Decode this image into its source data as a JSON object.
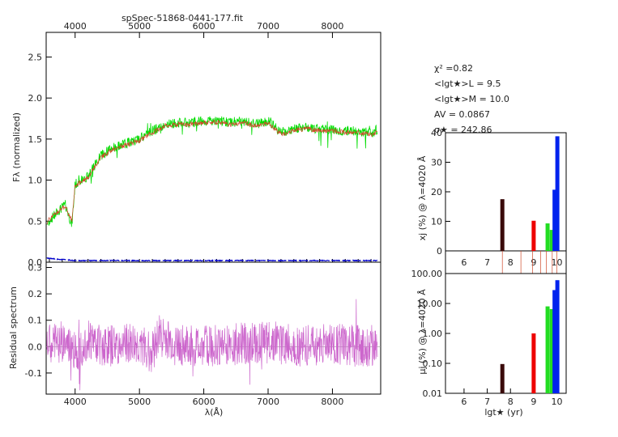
{
  "title": "spSpec-51868-0441-177.fit",
  "stats": {
    "chi2": "χ² =0.82",
    "lgt_l": "<lgt★>L = 9.5",
    "lgt_m": "<lgt★>M = 10.0",
    "av": "AV = 0.0867",
    "sigma": "σ★ = 242.86"
  },
  "spectrum_panel": {
    "ylabel": "Fλ (normalized)",
    "xlabel": "λ(Å)",
    "top_ticks": [
      "4000",
      "5000",
      "6000",
      "7000",
      "8000"
    ],
    "bottom_ticks": [
      "4000",
      "5000",
      "6000",
      "7000",
      "8000"
    ],
    "y_ticks": [
      "0.0",
      "0.5",
      "1.0",
      "1.5",
      "2.0",
      "2.5"
    ]
  },
  "residual_panel": {
    "ylabel": "Residual spectrum",
    "y_ticks": [
      "-0.1",
      "0.0",
      "0.1",
      "0.2",
      "0.3"
    ]
  },
  "xj_panel": {
    "ylabel": "xj (%) @ λ=4020 Å",
    "y_ticks": [
      "0",
      "10",
      "20",
      "30",
      "40"
    ],
    "x_ticks": [
      "6",
      "7",
      "8",
      "9",
      "10"
    ]
  },
  "mu_panel": {
    "ylabel": "μj (%) @ λ=4020 Å",
    "y_ticks": [
      "0.01",
      "0.10",
      "1.00",
      "10.00",
      "100.00"
    ],
    "x_ticks": [
      "6",
      "7",
      "8",
      "9",
      "10"
    ],
    "xlabel": "lgt★ (yr)"
  },
  "colors": {
    "observed": "#00dd00",
    "model": "#d04a2a",
    "error": "#0000cc",
    "residual": "#cc66cc",
    "bar_old": "#3a0a0a",
    "bar_red": "#ee0000",
    "bar_green": "#22dd22",
    "bar_blue": "#0022ee"
  },
  "chart_data": [
    {
      "type": "line",
      "title": "spSpec-51868-0441-177.fit",
      "xlabel": "λ(Å)",
      "ylabel": "Fλ (normalized)",
      "xlim": [
        3550,
        8750
      ],
      "ylim": [
        0,
        2.8
      ],
      "series": [
        {
          "name": "observed",
          "x": [
            3550,
            3700,
            3850,
            3950,
            4000,
            4100,
            4200,
            4400,
            4600,
            4800,
            5000,
            5200,
            5400,
            5600,
            5800,
            6000,
            6200,
            6400,
            6600,
            6800,
            7000,
            7200,
            7400,
            7600,
            7800,
            8000,
            8200,
            8400,
            8600,
            8700
          ],
          "values": [
            0.45,
            0.6,
            0.7,
            0.45,
            0.95,
            1.0,
            1.05,
            1.3,
            1.4,
            1.45,
            1.5,
            1.6,
            1.68,
            1.7,
            1.7,
            1.72,
            1.73,
            1.7,
            1.72,
            1.68,
            1.72,
            1.58,
            1.62,
            1.65,
            1.62,
            1.62,
            1.6,
            1.6,
            1.57,
            1.62
          ]
        },
        {
          "name": "model",
          "x": [
            3550,
            3700,
            3850,
            3950,
            4000,
            4100,
            4200,
            4400,
            4600,
            4800,
            5000,
            5200,
            5400,
            5600,
            5800,
            6000,
            6200,
            6400,
            6600,
            6800,
            7000,
            7200,
            7400,
            7600,
            7800,
            8000,
            8200,
            8400,
            8600,
            8700
          ],
          "values": [
            0.48,
            0.6,
            0.68,
            0.5,
            0.93,
            0.98,
            1.03,
            1.28,
            1.38,
            1.43,
            1.48,
            1.58,
            1.66,
            1.68,
            1.68,
            1.7,
            1.71,
            1.68,
            1.7,
            1.66,
            1.7,
            1.56,
            1.6,
            1.63,
            1.6,
            1.6,
            1.58,
            1.58,
            1.55,
            1.6
          ]
        },
        {
          "name": "error",
          "x": [
            3550,
            4000,
            5000,
            6000,
            7000,
            8000,
            8700
          ],
          "values": [
            0.05,
            0.02,
            0.02,
            0.02,
            0.02,
            0.02,
            0.02
          ]
        }
      ]
    },
    {
      "type": "line",
      "ylabel": "Residual spectrum",
      "xlabel": "λ(Å)",
      "xlim": [
        3550,
        8750
      ],
      "ylim": [
        -0.18,
        0.32
      ],
      "series": [
        {
          "name": "residual",
          "x": [
            3550,
            3800,
            4000,
            4200,
            4500,
            4800,
            5000,
            5200,
            5300,
            5500,
            5800,
            6000,
            6500,
            7000,
            7500,
            8000,
            8500,
            8700
          ],
          "values": [
            0.0,
            0.02,
            -0.02,
            0.03,
            0.0,
            0.01,
            0.0,
            -0.02,
            0.05,
            0.01,
            0.0,
            0.0,
            0.01,
            0.02,
            0.0,
            0.01,
            0.0,
            0.01
          ]
        }
      ]
    },
    {
      "type": "bar",
      "ylabel": "xj (%) @ λ=4020 Å",
      "xlim": [
        5.2,
        10.4
      ],
      "ylim": [
        0,
        40
      ],
      "x": [
        7.65,
        9.0,
        9.6,
        9.78,
        9.9,
        10.02
      ],
      "values": [
        17.5,
        10.2,
        9.3,
        7.1,
        20.7,
        38.8
      ],
      "colors": [
        "#3a0a0a",
        "#ee0000",
        "#22dd22",
        "#22dd22",
        "#0022ee",
        "#0022ee"
      ]
    },
    {
      "type": "bar",
      "ylabel": "μj (%) @ λ=4020 Å",
      "xlabel": "lgt★ (yr)",
      "scale": "log",
      "xlim": [
        5.2,
        10.4
      ],
      "ylim": [
        0.01,
        100
      ],
      "x": [
        7.65,
        9.0,
        9.6,
        9.78,
        9.9,
        10.02
      ],
      "values": [
        0.095,
        1.0,
        8.0,
        6.5,
        28.0,
        60.0
      ],
      "colors": [
        "#3a0a0a",
        "#ee0000",
        "#22dd22",
        "#22dd22",
        "#0022ee",
        "#0022ee"
      ]
    }
  ]
}
